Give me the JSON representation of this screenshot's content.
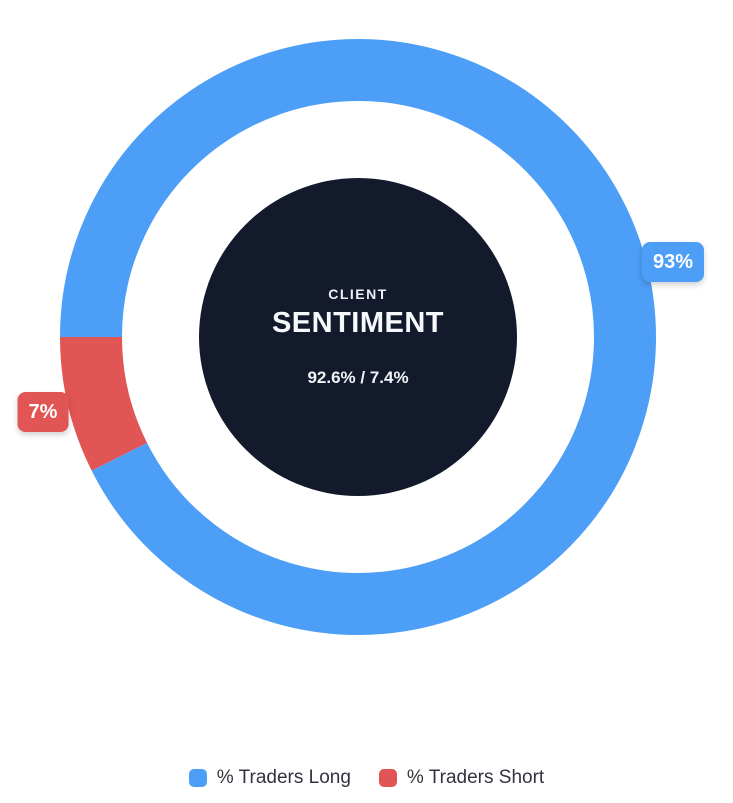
{
  "chart_data": {
    "type": "pie",
    "variant": "doughnut",
    "categories": [
      "% Traders Long",
      "% Traders Short"
    ],
    "values": [
      92.6,
      7.4
    ],
    "colors": [
      "#4D9EF7",
      "#E25555"
    ],
    "slice_labels": [
      "93%",
      "7%"
    ],
    "rotation_deg": -90,
    "direction": "clockwise",
    "legend_position": "bottom",
    "center_annotation": [
      "CLIENT",
      "SENTIMENT",
      "92.6% / 7.4%"
    ]
  },
  "center_badge": {
    "line1": "CLIENT",
    "line2": "SENTIMENT",
    "line3": "92.6% / 7.4%",
    "bg_color": "#131A2B"
  },
  "callouts": [
    {
      "text": "93%",
      "color": "#4D9EF7"
    },
    {
      "text": "7%",
      "color": "#E25555"
    }
  ],
  "legend": {
    "items": [
      {
        "label": "% Traders Long",
        "color": "#4D9EF7"
      },
      {
        "label": "% Traders Short",
        "color": "#E25555"
      }
    ]
  }
}
